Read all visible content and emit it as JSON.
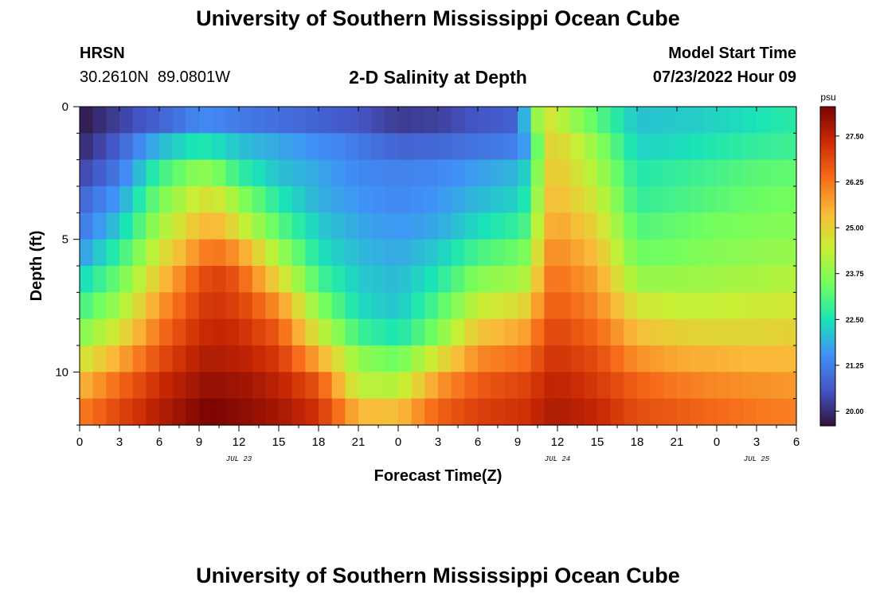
{
  "page": {
    "title": "University of Southern Mississippi Ocean Cube",
    "footer_title": "University of Southern Mississippi Ocean Cube"
  },
  "header": {
    "station_name": "HRSN",
    "coordinates": "30.2610N  89.0801W",
    "plot_title": "2-D Salinity at Depth",
    "model_start_label": "Model Start Time",
    "model_start_value": "07/23/2022 Hour 09"
  },
  "chart_data": {
    "type": "heatmap",
    "title": "2-D Salinity at Depth",
    "xlabel": "Forecast Time(Z)",
    "ylabel": "Depth (ft)",
    "x_tick_labels": [
      "0",
      "3",
      "6",
      "9",
      "12",
      "15",
      "18",
      "21",
      "0",
      "3",
      "6",
      "9",
      "12",
      "15",
      "18",
      "21",
      "0",
      "3",
      "6"
    ],
    "x_hours": [
      0,
      3,
      6,
      9,
      12,
      15,
      18,
      21,
      24,
      27,
      30,
      33,
      36,
      39,
      42,
      45,
      48,
      51,
      54
    ],
    "xlim": [
      0,
      54
    ],
    "date_labels": [
      {
        "text": "JUL 23",
        "hour": 12
      },
      {
        "text": "JUL 24",
        "hour": 36
      },
      {
        "text": "JUL 25",
        "hour": 51
      }
    ],
    "y_tick_labels": [
      "0",
      "5",
      "10"
    ],
    "y_ticks": [
      0,
      5,
      10
    ],
    "ylim": [
      0,
      12
    ],
    "depth_levels_ft": [
      0.5,
      1.5,
      2.5,
      3.5,
      4.5,
      5.5,
      6.5,
      7.5,
      8.5,
      9.5,
      10.5,
      11.5
    ],
    "colorbar": {
      "unit": "psu",
      "min": 19.6,
      "max": 28.3,
      "tick_labels": [
        "27.50",
        "26.25",
        "25.00",
        "23.75",
        "22.50",
        "21.25",
        "20.00"
      ],
      "tick_values": [
        27.5,
        26.25,
        25.0,
        23.75,
        22.5,
        21.25,
        20.0
      ]
    },
    "hours": [
      0,
      3,
      6,
      9,
      10,
      11,
      12,
      15,
      18,
      21,
      24,
      27,
      30,
      33,
      34,
      35,
      36,
      39,
      42,
      45,
      48,
      51,
      54
    ],
    "salinity_psu": [
      [
        19.7,
        20.3,
        20.8,
        21.4,
        21.4,
        21.3,
        21.2,
        21.0,
        20.8,
        20.6,
        20.2,
        20.3,
        20.6,
        20.8,
        23.0,
        24.8,
        24.4,
        23.2,
        22.1,
        22.2,
        22.3,
        22.5,
        22.7
      ],
      [
        19.9,
        20.8,
        22.0,
        22.6,
        22.5,
        22.3,
        22.1,
        21.8,
        21.5,
        21.2,
        20.8,
        20.9,
        21.1,
        21.3,
        22.0,
        24.8,
        25.0,
        23.8,
        22.3,
        22.4,
        22.6,
        22.8,
        22.9
      ],
      [
        20.3,
        21.2,
        22.9,
        23.8,
        23.7,
        23.3,
        22.8,
        22.1,
        21.8,
        21.4,
        21.3,
        21.4,
        21.7,
        22.0,
        22.5,
        24.9,
        25.2,
        24.1,
        22.6,
        22.8,
        23.0,
        23.2,
        23.3
      ],
      [
        20.8,
        21.7,
        23.5,
        24.6,
        24.7,
        24.4,
        23.8,
        22.6,
        21.9,
        21.6,
        21.4,
        21.6,
        22.0,
        22.3,
        22.8,
        25.1,
        25.4,
        24.5,
        22.8,
        23.0,
        23.2,
        23.4,
        23.5
      ],
      [
        21.1,
        22.2,
        24.0,
        25.3,
        25.5,
        25.2,
        24.6,
        23.2,
        22.2,
        21.8,
        21.6,
        21.8,
        22.4,
        22.8,
        23.2,
        25.4,
        25.7,
        24.9,
        23.1,
        23.3,
        23.5,
        23.6,
        23.7
      ],
      [
        21.6,
        22.8,
        24.6,
        26.0,
        26.3,
        26.1,
        25.8,
        24.0,
        22.5,
        22.0,
        21.8,
        22.2,
        23.0,
        23.4,
        23.7,
        25.8,
        26.0,
        25.3,
        23.4,
        23.5,
        23.7,
        23.8,
        23.9
      ],
      [
        22.3,
        23.4,
        25.2,
        26.7,
        27.0,
        26.9,
        26.6,
        24.9,
        23.0,
        22.2,
        22.0,
        22.6,
        23.7,
        24.0,
        24.3,
        26.1,
        26.3,
        25.7,
        23.9,
        23.9,
        24.0,
        24.1,
        24.2
      ],
      [
        22.9,
        24.0,
        25.8,
        27.0,
        27.2,
        27.1,
        27.0,
        25.9,
        23.7,
        22.4,
        22.1,
        23.1,
        24.4,
        24.8,
        25.1,
        26.4,
        26.6,
        26.0,
        24.6,
        24.4,
        24.4,
        24.5,
        24.6
      ],
      [
        23.6,
        24.7,
        26.3,
        27.3,
        27.4,
        27.4,
        27.3,
        26.6,
        24.5,
        22.9,
        22.5,
        23.6,
        25.2,
        25.6,
        25.8,
        26.8,
        26.9,
        26.4,
        25.3,
        25.0,
        24.9,
        24.9,
        25.0
      ],
      [
        24.5,
        25.6,
        26.8,
        27.6,
        27.7,
        27.6,
        27.6,
        27.1,
        25.6,
        23.8,
        23.4,
        24.7,
        26.0,
        26.3,
        26.4,
        27.1,
        27.2,
        26.8,
        25.9,
        25.6,
        25.5,
        25.4,
        25.4
      ],
      [
        25.4,
        26.4,
        27.3,
        27.9,
        28.0,
        27.9,
        27.9,
        27.5,
        26.7,
        24.3,
        24.2,
        25.8,
        26.6,
        26.9,
        27.0,
        27.4,
        27.5,
        27.1,
        26.5,
        26.2,
        26.0,
        25.9,
        25.8
      ],
      [
        26.1,
        26.9,
        27.6,
        28.2,
        28.3,
        28.2,
        28.1,
        27.8,
        27.2,
        25.4,
        25.3,
        26.5,
        27.0,
        27.2,
        27.3,
        27.6,
        27.7,
        27.4,
        26.8,
        26.6,
        26.4,
        26.2,
        26.1
      ]
    ],
    "palette": [
      "#30123b",
      "#4454c4",
      "#4190f8",
      "#1ae4b6",
      "#72fe5e",
      "#c8ef34",
      "#faba39",
      "#f66b19",
      "#cb2a04",
      "#7a0403"
    ],
    "grid": false,
    "legend": "colorbar-right"
  }
}
